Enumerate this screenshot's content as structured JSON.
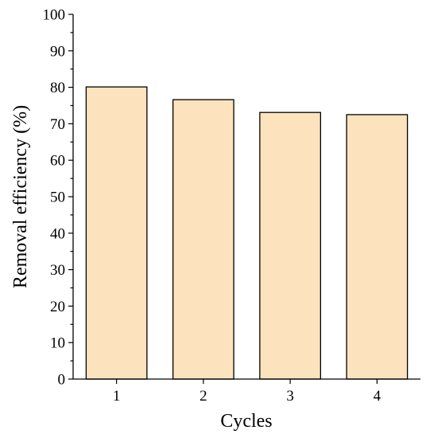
{
  "chart_data": {
    "type": "bar",
    "categories": [
      "1",
      "2",
      "3",
      "4"
    ],
    "values": [
      80.1,
      76.6,
      73.1,
      72.5
    ],
    "title": "",
    "xlabel": "Cycles",
    "ylabel": "Removal efficiency (%)",
    "ylim": [
      0,
      100
    ],
    "yticks": [
      "0",
      "10",
      "20",
      "30",
      "40",
      "50",
      "60",
      "70",
      "80",
      "90",
      "100"
    ],
    "bar_color": "#fde3bd",
    "bar_edge_color": "#000000",
    "grid": false,
    "legend": "none"
  }
}
